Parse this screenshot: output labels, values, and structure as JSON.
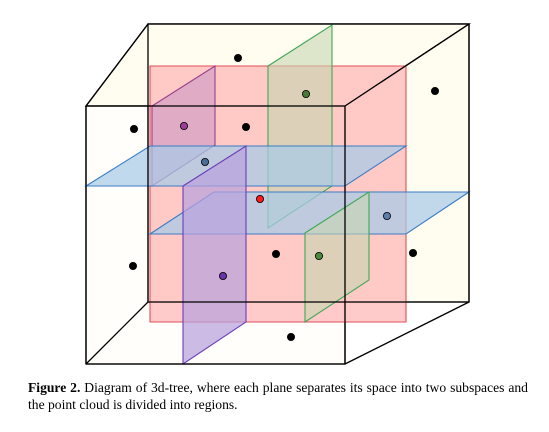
{
  "figure": {
    "colors": {
      "cube_fill": "#fffcf0",
      "cube_edge": "#000000",
      "red_plane_fill": "#ffb6b6",
      "red_plane_edge": "#e0505a",
      "blue_plane_fill": "#a8cbe8",
      "blue_plane_edge": "#3a7cc4",
      "purple_plane_fill": "#b8a2dc",
      "purple_plane_edge": "#6a3db8",
      "magenta_plane_fill": "#d6a2c4",
      "magenta_plane_edge": "#9a3f8a",
      "green_plane_fill": "#c6d6b0",
      "green_plane_edge": "#3fa858"
    },
    "points": [
      {
        "id": "p1",
        "color": "#000000"
      },
      {
        "id": "p2",
        "color": "#000000"
      },
      {
        "id": "p3",
        "color": "#000000"
      },
      {
        "id": "p4",
        "color": "#9b3d99"
      },
      {
        "id": "p5",
        "color": "#000000"
      },
      {
        "id": "p6",
        "color": "#4a7a3a"
      },
      {
        "id": "p7",
        "color": "#4b6e95"
      },
      {
        "id": "p8",
        "color": "#ff1a1a"
      },
      {
        "id": "p9",
        "color": "#5d7ea8"
      },
      {
        "id": "p10",
        "color": "#000000"
      },
      {
        "id": "p11",
        "color": "#000000"
      },
      {
        "id": "p12",
        "color": "#4a8a3a"
      },
      {
        "id": "p13",
        "color": "#000000"
      },
      {
        "id": "p14",
        "color": "#6633aa"
      },
      {
        "id": "p15",
        "color": "#000000"
      }
    ]
  },
  "caption": {
    "label": "Figure 2.",
    "text": "Diagram of 3d-tree, where each plane separates its space into two subspaces and the point cloud is divided into regions."
  }
}
